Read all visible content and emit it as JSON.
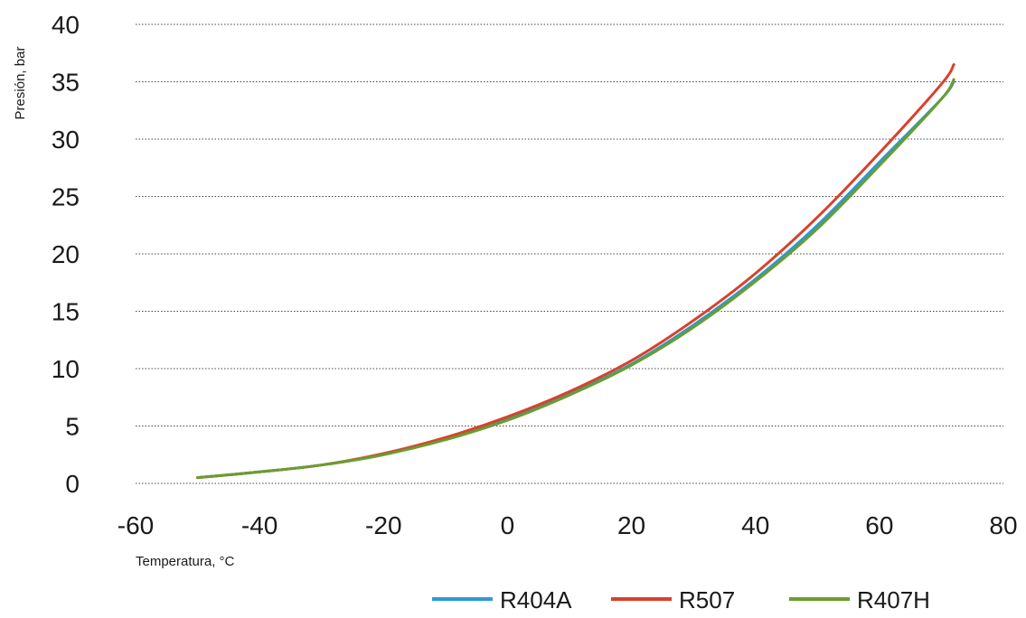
{
  "chart_data": {
    "type": "line",
    "title": "",
    "xlabel": "Temperatura, °C",
    "ylabel": "Presión, bar",
    "xlim": [
      -60,
      80
    ],
    "ylim": [
      0,
      40
    ],
    "x_ticks": [
      -60,
      -40,
      -20,
      0,
      20,
      40,
      60,
      80
    ],
    "y_ticks": [
      0,
      5,
      10,
      15,
      20,
      25,
      30,
      35,
      40
    ],
    "grid": true,
    "legend_position": "bottom-right",
    "x": [
      -50,
      -40,
      -30,
      -20,
      -10,
      0,
      10,
      20,
      30,
      40,
      50,
      60,
      70,
      72
    ],
    "series": [
      {
        "name": "R404A",
        "color": "#2b9ad3",
        "values": [
          0.5,
          1.0,
          1.6,
          2.5,
          3.9,
          5.6,
          7.8,
          10.4,
          13.8,
          17.8,
          22.5,
          28.0,
          33.5,
          35.0
        ]
      },
      {
        "name": "R507",
        "color": "#d9412b",
        "values": [
          0.5,
          1.0,
          1.6,
          2.6,
          4.0,
          5.8,
          8.0,
          10.7,
          14.2,
          18.3,
          23.2,
          28.8,
          34.8,
          36.5
        ]
      },
      {
        "name": "R407H",
        "color": "#6a9d2f",
        "values": [
          0.5,
          1.0,
          1.6,
          2.5,
          3.8,
          5.5,
          7.7,
          10.3,
          13.6,
          17.6,
          22.2,
          27.7,
          33.5,
          35.2
        ]
      }
    ]
  }
}
